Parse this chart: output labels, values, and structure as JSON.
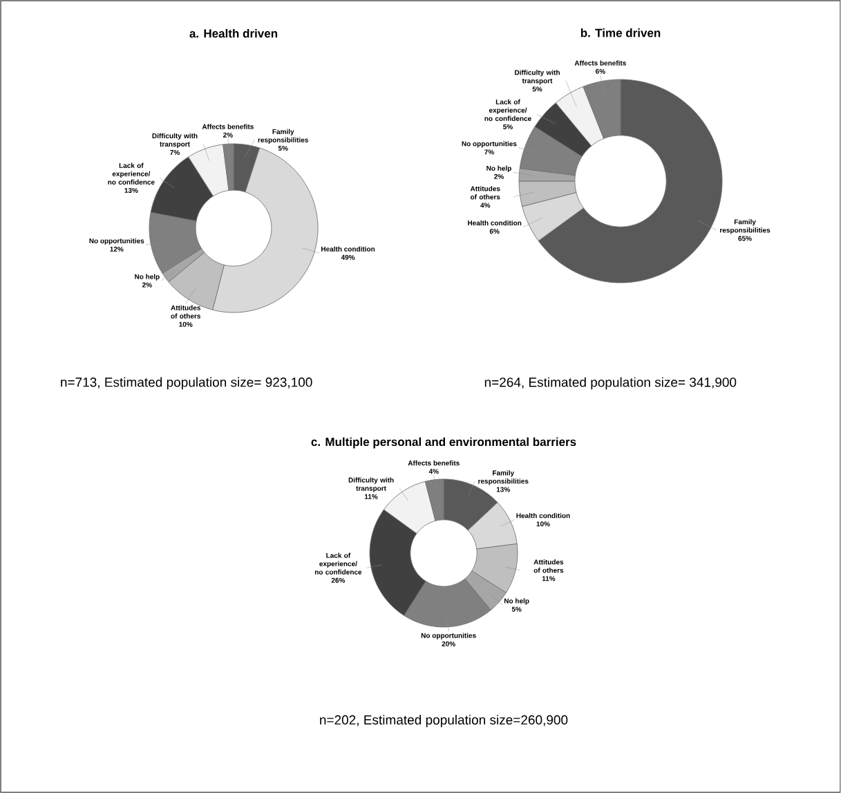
{
  "chart_data": [
    {
      "type": "donut",
      "title": "a. Health driven",
      "categories": [
        "Family responsibilities",
        "Health condition",
        "Attitudes of others",
        "No help",
        "No opportunities",
        "Lack of experience/ no confidence",
        "Difficulty with transport",
        "Affects benefits"
      ],
      "values": [
        5,
        49,
        10,
        2,
        12,
        13,
        7,
        2
      ],
      "value_labels": [
        "5%",
        "49%",
        "10%",
        "2%",
        "12%",
        "13%",
        "7%",
        "2%"
      ],
      "colors": [
        "#595959",
        "#d9d9d9",
        "#bfbfbf",
        "#a6a6a6",
        "#808080",
        "#404040",
        "#f2f2f2",
        "#7f7f7f"
      ],
      "annotations": [
        "n=713, Estimated population size= 923,100"
      ]
    },
    {
      "type": "donut",
      "title": "b. Time driven",
      "categories": [
        "Family responsibilities",
        "Health condition",
        "Attitudes of others",
        "No help",
        "No opportunities",
        "Lack of experience/ no confidence",
        "Difficulty with transport",
        "Affects benefits"
      ],
      "values": [
        65,
        6,
        4,
        2,
        7,
        5,
        5,
        6
      ],
      "value_labels": [
        "65%",
        "6%",
        "4%",
        "2%",
        "7%",
        "5%",
        "5%",
        "6%"
      ],
      "colors": [
        "#595959",
        "#d9d9d9",
        "#bfbfbf",
        "#a6a6a6",
        "#808080",
        "#404040",
        "#f2f2f2",
        "#7f7f7f"
      ],
      "annotations": [
        "n=264, Estimated population size= 341,900"
      ]
    },
    {
      "type": "donut",
      "title": "c. Multiple personal and environmental barriers",
      "categories": [
        "Family responsibilities",
        "Health condition",
        "Attitudes of others",
        "No help",
        "No opportunities",
        "Lack of experience/ no confidence",
        "Difficulty with transport",
        "Affects benefits"
      ],
      "values": [
        13,
        10,
        11,
        5,
        20,
        26,
        11,
        4
      ],
      "value_labels": [
        "13%",
        "10%",
        "11%",
        "5%",
        "20%",
        "26%",
        "11%",
        "4%"
      ],
      "colors": [
        "#595959",
        "#d9d9d9",
        "#bfbfbf",
        "#a6a6a6",
        "#808080",
        "#404040",
        "#f2f2f2",
        "#7f7f7f"
      ],
      "annotations": [
        "n=202, Estimated population size=260,900"
      ]
    }
  ]
}
